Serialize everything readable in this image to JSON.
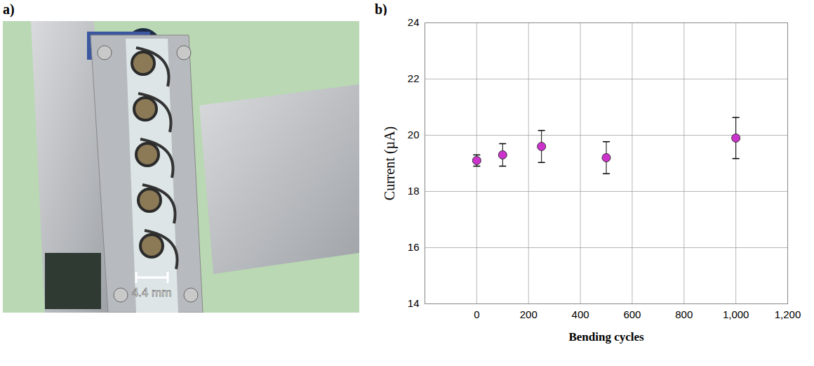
{
  "photo": {
    "panel": "a)",
    "scale_bar": "4.4 mm"
  },
  "chart_data": {
    "panel": "b)",
    "type": "scatter",
    "x_label": "Bending cycles",
    "y_label": "Current (µA)",
    "x": [
      0,
      100,
      250,
      500,
      1000
    ],
    "values": [
      19.1,
      19.3,
      19.6,
      19.2,
      19.9
    ],
    "errors": [
      0.2,
      0.4,
      0.57,
      0.57,
      0.73
    ],
    "color": "#cc33cc",
    "marker": "circle",
    "xlim": [
      -200,
      1200
    ],
    "xticks": [
      0,
      200,
      400,
      600,
      800,
      1000,
      1200
    ],
    "ylim": [
      14,
      24
    ],
    "yticks": [
      14,
      16,
      18,
      20,
      22,
      24
    ],
    "grid": true
  }
}
